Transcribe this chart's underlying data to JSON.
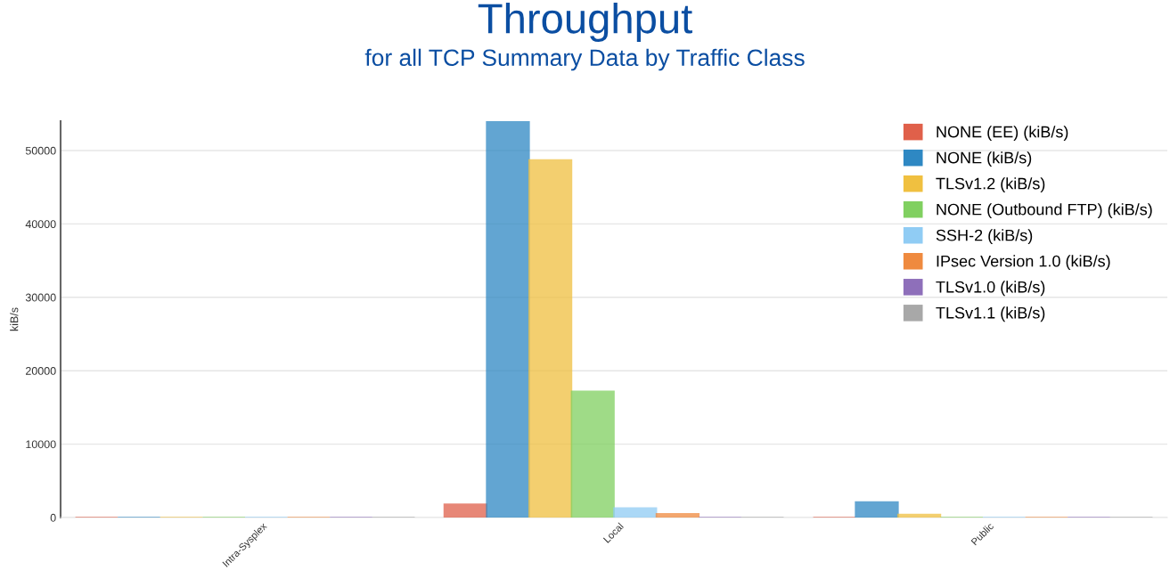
{
  "chart_data": {
    "type": "bar",
    "title": "Throughput",
    "subtitle": "for all TCP Summary Data by Traffic Class",
    "ylabel": "kiB/s",
    "categories": [
      "Intra-Sysplex",
      "Local",
      "Public"
    ],
    "series": [
      {
        "name": "NONE (EE) (kiB/s)",
        "color": "#e0604a",
        "values": [
          0,
          1800,
          0
        ]
      },
      {
        "name": "NONE (kiB/s)",
        "color": "#2e88c3",
        "values": [
          0,
          54000,
          2100
        ]
      },
      {
        "name": "TLSv1.2 (kiB/s)",
        "color": "#f0c040",
        "values": [
          0,
          48700,
          400
        ]
      },
      {
        "name": "NONE (Outbound FTP) (kiB/s)",
        "color": "#80d060",
        "values": [
          0,
          17200,
          0
        ]
      },
      {
        "name": "SSH-2 (kiB/s)",
        "color": "#90ccf4",
        "values": [
          0,
          1300,
          0
        ]
      },
      {
        "name": "IPsec Version 1.0 (kiB/s)",
        "color": "#ef8a3f",
        "values": [
          0,
          500,
          0
        ]
      },
      {
        "name": "TLSv1.0 (kiB/s)",
        "color": "#8e6fba",
        "values": [
          0,
          0,
          0
        ]
      },
      {
        "name": "TLSv1.1 (kiB/s)",
        "color": "#a8a8a8",
        "values": [
          0,
          0,
          0
        ]
      }
    ],
    "ylim": [
      0,
      54000
    ],
    "yticks": [
      0,
      10000,
      20000,
      30000,
      40000,
      50000
    ],
    "grid": "y",
    "legend": "top right"
  }
}
